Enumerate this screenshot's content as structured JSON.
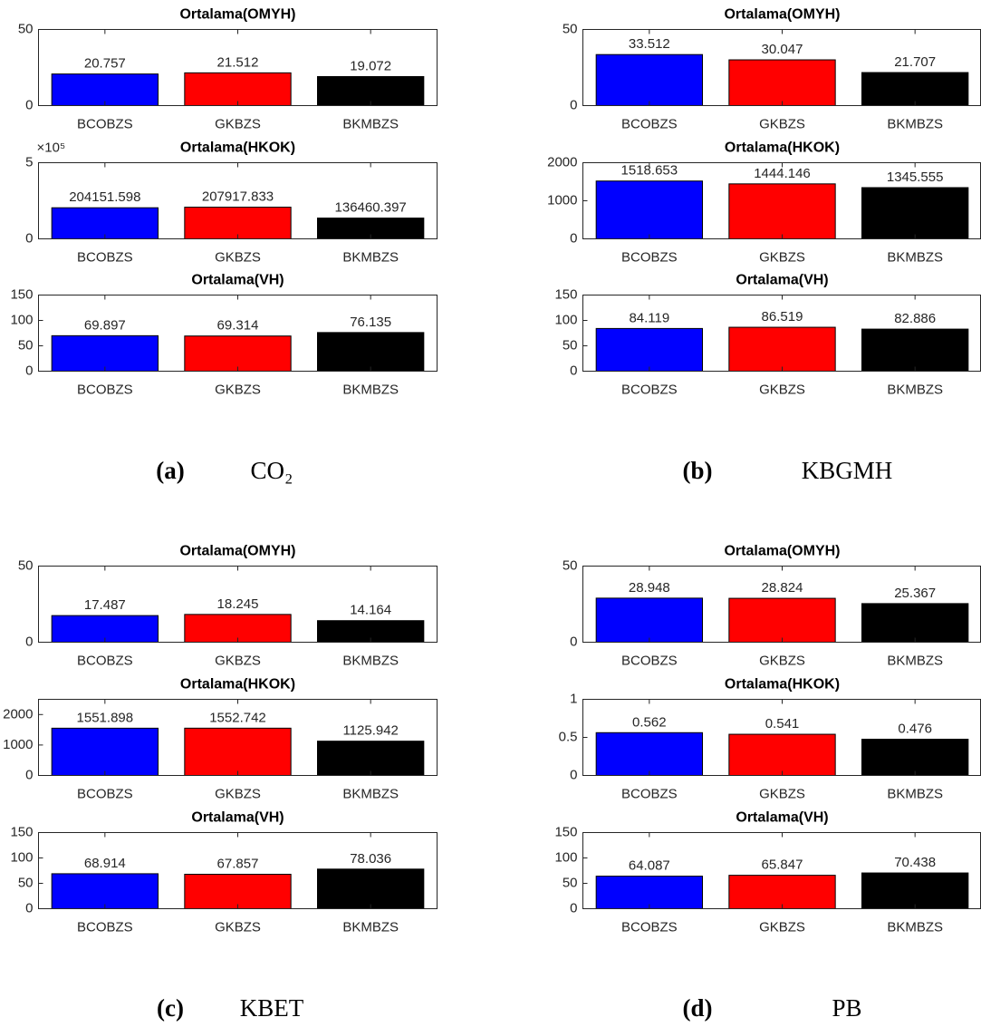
{
  "chart_data": [
    {
      "type": "bar",
      "title": "Ortalama(OMYH)",
      "categories": [
        "BCOBZS",
        "GKBZS",
        "BKMBZS"
      ],
      "values": [
        20.757,
        21.512,
        19.072
      ],
      "colors": [
        "#0000ff",
        "#ff0000",
        "#000000"
      ],
      "ylim": [
        0,
        50
      ],
      "yticks": [
        0,
        50
      ]
    },
    {
      "type": "bar",
      "title": "Ortalama(HKOK)",
      "categories": [
        "BCOBZS",
        "GKBZS",
        "BKMBZS"
      ],
      "values": [
        204151.598,
        207917.833,
        136460.397
      ],
      "colors": [
        "#0000ff",
        "#ff0000",
        "#000000"
      ],
      "ylim": [
        0,
        500000
      ],
      "yticks": [
        0,
        {
          "value": 500000,
          "label": "5"
        }
      ],
      "y_exponent_label": "×10⁵"
    },
    {
      "type": "bar",
      "title": "Ortalama(VH)",
      "categories": [
        "BCOBZS",
        "GKBZS",
        "BKMBZS"
      ],
      "values": [
        69.897,
        69.314,
        76.135
      ],
      "colors": [
        "#0000ff",
        "#ff0000",
        "#000000"
      ],
      "ylim": [
        0,
        150
      ],
      "yticks": [
        0,
        50,
        100,
        150
      ]
    },
    {
      "type": "bar",
      "title": "Ortalama(OMYH)",
      "categories": [
        "BCOBZS",
        "GKBZS",
        "BKMBZS"
      ],
      "values": [
        33.512,
        30.047,
        21.707
      ],
      "colors": [
        "#0000ff",
        "#ff0000",
        "#000000"
      ],
      "ylim": [
        0,
        50
      ],
      "yticks": [
        0,
        50
      ]
    },
    {
      "type": "bar",
      "title": "Ortalama(HKOK)",
      "categories": [
        "BCOBZS",
        "GKBZS",
        "BKMBZS"
      ],
      "values": [
        1518.653,
        1444.146,
        1345.555
      ],
      "colors": [
        "#0000ff",
        "#ff0000",
        "#000000"
      ],
      "ylim": [
        0,
        2000
      ],
      "yticks": [
        0,
        1000,
        2000
      ]
    },
    {
      "type": "bar",
      "title": "Ortalama(VH)",
      "categories": [
        "BCOBZS",
        "GKBZS",
        "BKMBZS"
      ],
      "values": [
        84.119,
        86.519,
        82.886
      ],
      "colors": [
        "#0000ff",
        "#ff0000",
        "#000000"
      ],
      "ylim": [
        0,
        150
      ],
      "yticks": [
        0,
        50,
        100,
        150
      ]
    },
    {
      "type": "bar",
      "title": "Ortalama(OMYH)",
      "categories": [
        "BCOBZS",
        "GKBZS",
        "BKMBZS"
      ],
      "values": [
        17.487,
        18.245,
        14.164
      ],
      "colors": [
        "#0000ff",
        "#ff0000",
        "#000000"
      ],
      "ylim": [
        0,
        50
      ],
      "yticks": [
        0,
        50
      ]
    },
    {
      "type": "bar",
      "title": "Ortalama(HKOK)",
      "categories": [
        "BCOBZS",
        "GKBZS",
        "BKMBZS"
      ],
      "values": [
        1551.898,
        1552.742,
        1125.942
      ],
      "colors": [
        "#0000ff",
        "#ff0000",
        "#000000"
      ],
      "ylim": [
        0,
        2500
      ],
      "yticks": [
        0,
        1000,
        2000
      ]
    },
    {
      "type": "bar",
      "title": "Ortalama(VH)",
      "categories": [
        "BCOBZS",
        "GKBZS",
        "BKMBZS"
      ],
      "values": [
        68.914,
        67.857,
        78.036
      ],
      "colors": [
        "#0000ff",
        "#ff0000",
        "#000000"
      ],
      "ylim": [
        0,
        150
      ],
      "yticks": [
        0,
        50,
        100,
        150
      ]
    },
    {
      "type": "bar",
      "title": "Ortalama(OMYH)",
      "categories": [
        "BCOBZS",
        "GKBZS",
        "BKMBZS"
      ],
      "values": [
        28.948,
        28.824,
        25.367
      ],
      "colors": [
        "#0000ff",
        "#ff0000",
        "#000000"
      ],
      "ylim": [
        0,
        50
      ],
      "yticks": [
        0,
        50
      ]
    },
    {
      "type": "bar",
      "title": "Ortalama(HKOK)",
      "categories": [
        "BCOBZS",
        "GKBZS",
        "BKMBZS"
      ],
      "values": [
        0.562,
        0.541,
        0.476
      ],
      "colors": [
        "#0000ff",
        "#ff0000",
        "#000000"
      ],
      "ylim": [
        0,
        1
      ],
      "yticks": [
        0,
        0.5,
        1
      ]
    },
    {
      "type": "bar",
      "title": "Ortalama(VH)",
      "categories": [
        "BCOBZS",
        "GKBZS",
        "BKMBZS"
      ],
      "values": [
        64.087,
        65.847,
        70.438
      ],
      "colors": [
        "#0000ff",
        "#ff0000",
        "#000000"
      ],
      "ylim": [
        0,
        150
      ],
      "yticks": [
        0,
        50,
        100,
        150
      ]
    }
  ],
  "captions": [
    {
      "label": "(a)",
      "text": "CO₂"
    },
    {
      "label": "(b)",
      "text": "KBGMH"
    },
    {
      "label": "(c)",
      "text": "KBET"
    },
    {
      "label": "(d)",
      "text": "PB"
    }
  ]
}
